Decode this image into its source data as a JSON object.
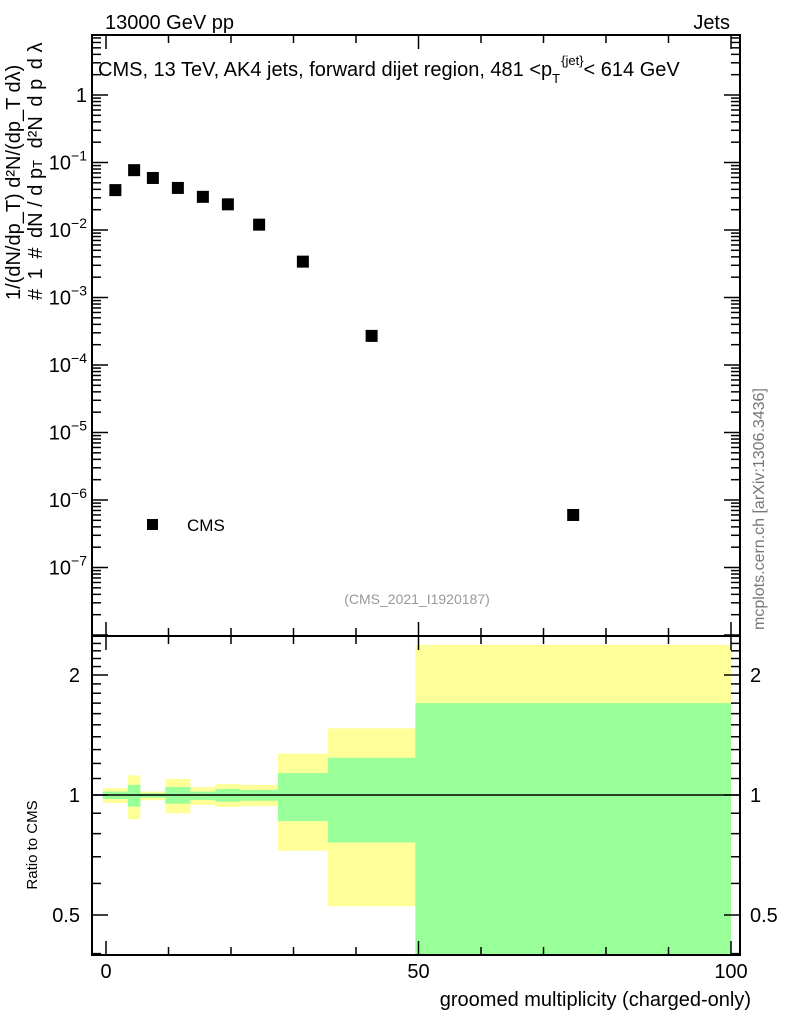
{
  "header": {
    "left": "13000 GeV pp",
    "right": "Jets"
  },
  "side_label": "mcplots.cern.ch [arXiv:1306.3436]",
  "analysis_id": "(CMS_2021_I1920187)",
  "chart_data": [
    {
      "type": "scatter",
      "title": "CMS, 13 TeV, AK4 jets, forward dijet region, 481 <p_T^{jet}< 614 GeV",
      "title_parts": {
        "main": "CMS, 13 TeV, AK4 jets, forward dijet region, 481 <p",
        "sub": "T",
        "sup": "{jet}",
        "tail": "< 614 GeV"
      },
      "ylabel": "1/(dN/dp_T) d²N/(dp_T dλ)",
      "ylabel_parts": {
        "hash": "#",
        "one": "1",
        "dn": "dN / d p",
        "t": "T",
        "d2n": "d²N",
        "dpt": "d p",
        "dl": "d λ"
      },
      "yscale": "log",
      "ylim": [
        1e-08,
        7.7
      ],
      "xlim": [
        -3,
        101
      ],
      "ytick_labels": [
        {
          "v": 1,
          "label": "1",
          "exp": ""
        },
        {
          "v": 0.1,
          "label": "10",
          "exp": "−1"
        },
        {
          "v": 0.01,
          "label": "10",
          "exp": "−2"
        },
        {
          "v": 0.001,
          "label": "10",
          "exp": "−3"
        },
        {
          "v": 0.0001,
          "label": "10",
          "exp": "−4"
        },
        {
          "v": 1e-05,
          "label": "10",
          "exp": "−5"
        },
        {
          "v": 1e-06,
          "label": "10",
          "exp": "−6"
        },
        {
          "v": 1e-07,
          "label": "10",
          "exp": "−7"
        }
      ],
      "legend": {
        "entries": [
          "CMS"
        ],
        "placement": "bottom-left"
      },
      "series": [
        {
          "name": "CMS",
          "x": [
            1.5,
            4.5,
            7.5,
            11.5,
            15.5,
            19.5,
            24.5,
            31.5,
            42.5,
            74.75
          ],
          "y": [
            0.039,
            0.077,
            0.059,
            0.042,
            0.031,
            0.024,
            0.012,
            0.0034,
            0.00027,
            6e-07
          ]
        }
      ]
    },
    {
      "type": "area",
      "ylabel": "Ratio to CMS",
      "xlabel": "groomed multiplicity (charged-only)",
      "yscale": "log",
      "ylim": [
        0.4,
        2.5
      ],
      "xlim": [
        -3,
        101
      ],
      "xtick_labels": [
        {
          "v": 0,
          "label": "0"
        },
        {
          "v": 50,
          "label": "50"
        },
        {
          "v": 100,
          "label": "100"
        }
      ],
      "ytick_labels": [
        {
          "v": 2,
          "label": "2"
        },
        {
          "v": 1,
          "label": "1"
        },
        {
          "v": 0.5,
          "label": "0.5"
        }
      ],
      "bin_edges": [
        -0.5,
        3.5,
        5.5,
        9.5,
        13.5,
        17.5,
        21.5,
        27.5,
        35.5,
        49.5,
        100
      ],
      "band_outer": {
        "color": "#ffff99",
        "low": [
          0.955,
          0.87,
          0.97,
          0.9,
          0.944,
          0.933,
          0.938,
          0.725,
          0.526,
          0.3
        ],
        "high": [
          1.04,
          1.12,
          1.02,
          1.097,
          1.047,
          1.065,
          1.06,
          1.27,
          1.47,
          2.38
        ]
      },
      "band_inner": {
        "color": "#99ff99",
        "low": [
          0.977,
          0.935,
          0.985,
          0.951,
          0.972,
          0.962,
          0.967,
          0.86,
          0.76,
          0.3
        ],
        "high": [
          1.02,
          1.06,
          1.01,
          1.047,
          1.02,
          1.035,
          1.03,
          1.135,
          1.24,
          1.7
        ]
      },
      "reference_line": 1
    }
  ]
}
